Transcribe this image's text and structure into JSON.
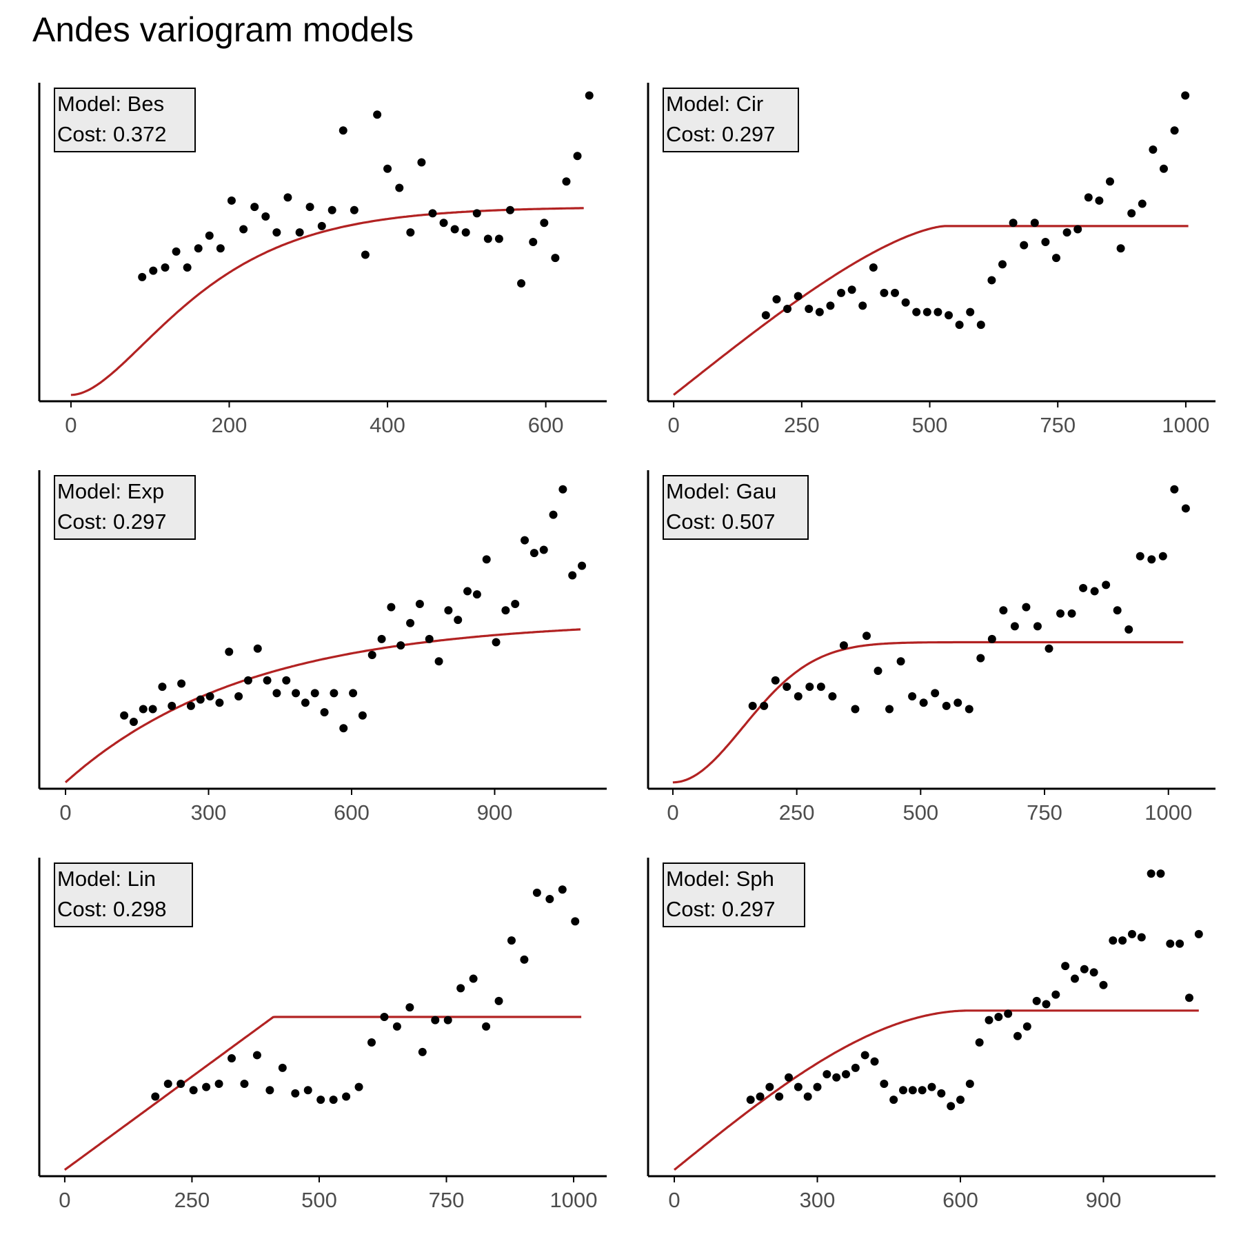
{
  "title": "Andes variogram models",
  "colors": {
    "line": "#b22222",
    "points": "#000000",
    "axis": "#000000",
    "tick_label": "#4d4d4d",
    "label_bg": "#ebebeb"
  },
  "chart_data": [
    {
      "type": "scatter",
      "model": "Bes",
      "cost": "0.372",
      "label_lines": [
        "Model: Bes",
        "Cost: 0.372"
      ],
      "xlim": [
        -40,
        677
      ],
      "ylim": [
        0,
        1
      ],
      "xticks": [
        0,
        200,
        400,
        600
      ],
      "points": {
        "x": [
          90,
          104,
          119,
          133,
          147,
          161,
          175,
          189,
          203,
          218,
          232,
          246,
          260,
          274,
          289,
          302,
          317,
          330,
          344,
          358,
          372,
          387,
          400,
          415,
          429,
          443,
          457,
          471,
          485,
          499,
          513,
          527,
          541,
          555,
          569,
          584,
          598,
          612,
          626,
          640,
          655
        ],
        "y": [
          0.39,
          0.41,
          0.42,
          0.47,
          0.42,
          0.48,
          0.52,
          0.48,
          0.63,
          0.54,
          0.61,
          0.58,
          0.53,
          0.64,
          0.53,
          0.61,
          0.55,
          0.6,
          0.85,
          0.6,
          0.46,
          0.9,
          0.73,
          0.67,
          0.53,
          0.75,
          0.59,
          0.56,
          0.54,
          0.53,
          0.59,
          0.51,
          0.51,
          0.6,
          0.37,
          0.5,
          0.56,
          0.45,
          0.69,
          0.77,
          0.96
        ]
      },
      "line": {
        "x_max": 648
      }
    },
    {
      "type": "scatter",
      "model": "Cir",
      "cost": "0.297",
      "label_lines": [
        "Model: Cir",
        "Cost: 0.297"
      ],
      "xlim": [
        -50,
        1058
      ],
      "ylim": [
        0,
        1
      ],
      "xticks": [
        0,
        250,
        500,
        750,
        1000
      ],
      "points": {
        "x": [
          180,
          201,
          222,
          243,
          264,
          285,
          306,
          327,
          348,
          369,
          390,
          411,
          432,
          453,
          474,
          495,
          516,
          537,
          558,
          579,
          600,
          621,
          642,
          663,
          684,
          705,
          726,
          747,
          768,
          789,
          810,
          831,
          852,
          873,
          894,
          915,
          936,
          957,
          978,
          999
        ],
        "y": [
          0.27,
          0.32,
          0.29,
          0.33,
          0.29,
          0.28,
          0.3,
          0.34,
          0.35,
          0.3,
          0.42,
          0.34,
          0.34,
          0.31,
          0.28,
          0.28,
          0.28,
          0.27,
          0.24,
          0.28,
          0.24,
          0.38,
          0.43,
          0.56,
          0.49,
          0.56,
          0.5,
          0.45,
          0.53,
          0.54,
          0.64,
          0.63,
          0.69,
          0.48,
          0.59,
          0.62,
          0.79,
          0.73,
          0.85,
          0.96
        ]
      },
      "line": {
        "x_max": 1005
      }
    },
    {
      "type": "scatter",
      "model": "Exp",
      "cost": "0.297",
      "label_lines": [
        "Model: Exp",
        "Cost: 0.297"
      ],
      "xlim": [
        -55,
        1135
      ],
      "ylim": [
        0,
        1
      ],
      "xticks": [
        0,
        300,
        600,
        900
      ],
      "points": {
        "x": [
          123,
          143,
          163,
          183,
          203,
          223,
          243,
          263,
          283,
          303,
          323,
          343,
          363,
          383,
          403,
          423,
          443,
          463,
          483,
          503,
          523,
          543,
          563,
          583,
          603,
          623,
          643,
          663,
          683,
          703,
          723,
          743,
          763,
          783,
          803,
          823,
          843,
          863,
          883,
          903,
          923,
          943,
          963,
          983,
          1003,
          1023,
          1043,
          1063,
          1083
        ],
        "y": [
          0.23,
          0.21,
          0.25,
          0.25,
          0.32,
          0.26,
          0.33,
          0.26,
          0.28,
          0.29,
          0.27,
          0.43,
          0.29,
          0.34,
          0.44,
          0.34,
          0.3,
          0.34,
          0.3,
          0.27,
          0.3,
          0.24,
          0.3,
          0.19,
          0.3,
          0.23,
          0.42,
          0.47,
          0.57,
          0.45,
          0.52,
          0.58,
          0.47,
          0.4,
          0.56,
          0.53,
          0.62,
          0.61,
          0.72,
          0.46,
          0.56,
          0.58,
          0.78,
          0.74,
          0.75,
          0.86,
          0.94,
          0.67,
          0.7
        ]
      },
      "line": {
        "x_max": 1080
      }
    },
    {
      "type": "scatter",
      "model": "Gau",
      "cost": "0.507",
      "label_lines": [
        "Model: Gau",
        "Cost: 0.507"
      ],
      "xlim": [
        -50,
        1095
      ],
      "ylim": [
        0,
        1
      ],
      "xticks": [
        0,
        250,
        500,
        750,
        1000
      ],
      "points": {
        "x": [
          161,
          184,
          207,
          230,
          253,
          276,
          299,
          322,
          345,
          368,
          391,
          414,
          437,
          460,
          483,
          506,
          529,
          552,
          575,
          598,
          621,
          644,
          667,
          690,
          713,
          736,
          759,
          782,
          805,
          828,
          851,
          874,
          897,
          920,
          943,
          966,
          989,
          1012,
          1035
        ],
        "y": [
          0.26,
          0.26,
          0.34,
          0.32,
          0.29,
          0.32,
          0.32,
          0.29,
          0.45,
          0.25,
          0.48,
          0.37,
          0.25,
          0.4,
          0.29,
          0.27,
          0.3,
          0.26,
          0.27,
          0.25,
          0.41,
          0.47,
          0.56,
          0.51,
          0.57,
          0.51,
          0.44,
          0.55,
          0.55,
          0.63,
          0.62,
          0.64,
          0.56,
          0.5,
          0.73,
          0.72,
          0.73,
          0.94,
          0.88
        ]
      },
      "line": {
        "x_max": 1030
      }
    },
    {
      "type": "scatter",
      "model": "Lin",
      "cost": "0.298",
      "label_lines": [
        "Model: Lin",
        "Cost: 0.298"
      ],
      "xlim": [
        -50,
        1065
      ],
      "ylim": [
        0,
        1
      ],
      "xticks": [
        0,
        250,
        500,
        750,
        1000
      ],
      "points": {
        "x": [
          178,
          203,
          228,
          253,
          278,
          303,
          328,
          353,
          378,
          403,
          428,
          453,
          478,
          503,
          528,
          553,
          578,
          603,
          628,
          653,
          678,
          703,
          728,
          753,
          778,
          803,
          828,
          853,
          878,
          903,
          928,
          953,
          978,
          1003
        ],
        "y": [
          0.25,
          0.29,
          0.29,
          0.27,
          0.28,
          0.29,
          0.37,
          0.29,
          0.38,
          0.27,
          0.34,
          0.26,
          0.27,
          0.24,
          0.24,
          0.25,
          0.28,
          0.42,
          0.5,
          0.47,
          0.53,
          0.39,
          0.49,
          0.49,
          0.59,
          0.62,
          0.47,
          0.55,
          0.74,
          0.68,
          0.89,
          0.87,
          0.9,
          0.8
        ]
      },
      "line": {
        "x_max": 1015
      }
    },
    {
      "type": "scatter",
      "model": "Sph",
      "cost": "0.297",
      "label_lines": [
        "Model: Sph",
        "Cost: 0.297"
      ],
      "xlim": [
        -55,
        1135
      ],
      "ylim": [
        0,
        1
      ],
      "xticks": [
        0,
        300,
        600,
        900
      ],
      "points": {
        "x": [
          160,
          180,
          200,
          220,
          240,
          260,
          280,
          300,
          320,
          340,
          360,
          380,
          400,
          420,
          440,
          460,
          480,
          500,
          520,
          540,
          560,
          580,
          600,
          620,
          640,
          660,
          680,
          700,
          720,
          740,
          760,
          780,
          800,
          820,
          840,
          860,
          880,
          900,
          920,
          940,
          960,
          980,
          1000,
          1020,
          1040,
          1060,
          1080,
          1100
        ],
        "y": [
          0.24,
          0.25,
          0.28,
          0.25,
          0.31,
          0.28,
          0.25,
          0.28,
          0.32,
          0.31,
          0.32,
          0.34,
          0.38,
          0.36,
          0.29,
          0.24,
          0.27,
          0.27,
          0.27,
          0.28,
          0.26,
          0.22,
          0.24,
          0.29,
          0.42,
          0.49,
          0.5,
          0.51,
          0.44,
          0.47,
          0.55,
          0.54,
          0.57,
          0.66,
          0.62,
          0.65,
          0.64,
          0.6,
          0.74,
          0.74,
          0.76,
          0.75,
          0.95,
          0.95,
          0.73,
          0.73,
          0.56,
          0.76
        ]
      },
      "line": {
        "x_max": 1100
      }
    }
  ]
}
